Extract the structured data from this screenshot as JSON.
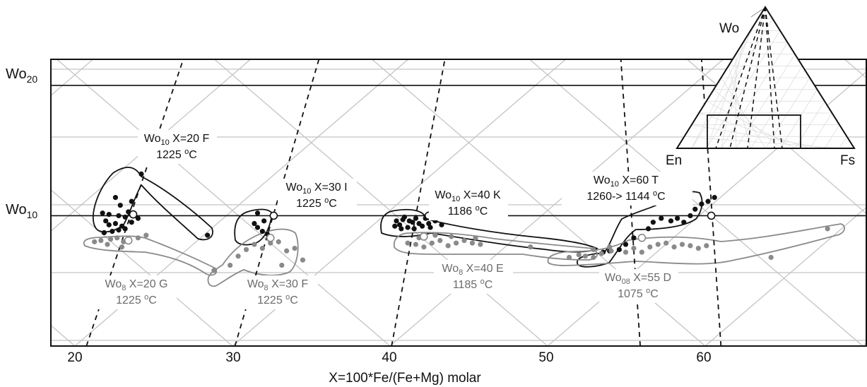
{
  "chart_data": {
    "type": "scatter",
    "title": "",
    "xlabel": "X=100*Fe/(Fe+Mg) molar",
    "ylabel": "",
    "xlim": [
      18.5,
      69
    ],
    "ylim": [
      0,
      22
    ],
    "x_ticks": [
      20,
      30,
      40,
      50,
      60
    ],
    "x_tick_labels": [
      "20",
      "30",
      "40",
      "50",
      "60"
    ],
    "y_ticks": [
      {
        "value": 20,
        "base": "Wo",
        "sub": "20"
      },
      {
        "value": 10,
        "base": "Wo",
        "sub": "10"
      }
    ],
    "grid": true,
    "colors": {
      "black_series": "#111111",
      "grey_series": "#8a8a8a",
      "grid": "#bdbdbd"
    },
    "series": [
      {
        "label": {
          "base": "Wo",
          "sub": "10",
          "rest": " X=20 F",
          "temp": "1225 ",
          "deg": "o",
          "unit": "C"
        },
        "color": "black",
        "points": [
          [
            21.9,
            9.6
          ],
          [
            22.1,
            9.3
          ],
          [
            22.5,
            9.4
          ],
          [
            22.9,
            9.2
          ],
          [
            22.7,
            10.0
          ],
          [
            23.1,
            9.9
          ],
          [
            23.3,
            10.3
          ],
          [
            22.8,
            10.8
          ],
          [
            23.5,
            11.1
          ],
          [
            24.1,
            13.2
          ],
          [
            22.5,
            11.4
          ],
          [
            21.8,
            8.7
          ],
          [
            22.3,
            8.8
          ],
          [
            22.7,
            8.9
          ],
          [
            23.1,
            9.0
          ],
          [
            23.5,
            9.5
          ],
          [
            23.9,
            9.8
          ],
          [
            22.1,
            10.1
          ],
          [
            21.7,
            10.2
          ],
          [
            28.2,
            8.5
          ]
        ],
        "open_points": [
          [
            23.6,
            10.1
          ]
        ]
      },
      {
        "label": {
          "base": "Wo",
          "sub": "10",
          "rest": " X=30 I",
          "temp": "1225 ",
          "deg": "o",
          "unit": "C"
        },
        "color": "black",
        "points": [
          [
            31.1,
            9.4
          ],
          [
            31.3,
            9.1
          ],
          [
            31.6,
            8.8
          ],
          [
            31.9,
            8.6
          ],
          [
            31.3,
            10.2
          ],
          [
            31.7,
            9.6
          ]
        ],
        "open_points": [
          [
            32.3,
            10.0
          ]
        ]
      },
      {
        "label": {
          "base": "Wo",
          "sub": "10",
          "rest": " X=40 K",
          "temp": "1186 ",
          "deg": "o",
          "unit": "C"
        },
        "color": "black",
        "points": [
          [
            39.9,
            9.6
          ],
          [
            40.1,
            9.3
          ],
          [
            40.3,
            9.7
          ],
          [
            40.6,
            9.1
          ],
          [
            40.9,
            9.5
          ],
          [
            41.1,
            9.8
          ],
          [
            41.5,
            9.2
          ],
          [
            41.9,
            9.4
          ],
          [
            42.3,
            9.6
          ],
          [
            40.4,
            9.9
          ],
          [
            39.8,
            9.2
          ],
          [
            40.7,
            9.6
          ],
          [
            41.3,
            9.4
          ],
          [
            42.0,
            9.1
          ],
          [
            42.7,
            9.3
          ],
          [
            40.2,
            9.0
          ],
          [
            41.0,
            9.0
          ],
          [
            41.7,
            9.8
          ]
        ],
        "open_points": [
          [
            41.9,
            10.0
          ]
        ]
      },
      {
        "label": {
          "base": "Wo",
          "sub": "10",
          "rest": " X=60 T",
          "temp": "1260-> 1144 ",
          "deg": "o",
          "unit": "C"
        },
        "color": "black",
        "points": [
          [
            52.7,
            7.2
          ],
          [
            53.1,
            7.3
          ],
          [
            53.7,
            7.4
          ],
          [
            54.1,
            7.8
          ],
          [
            54.6,
            8.3
          ],
          [
            55.1,
            8.4
          ],
          [
            55.8,
            9.5
          ],
          [
            56.3,
            9.8
          ],
          [
            56.9,
            9.6
          ],
          [
            57.3,
            9.8
          ],
          [
            57.7,
            9.5
          ],
          [
            58.1,
            10.0
          ],
          [
            58.4,
            10.5
          ],
          [
            58.8,
            10.9
          ],
          [
            59.2,
            11.1
          ],
          [
            59.6,
            11.4
          ],
          [
            55.5,
            9.0
          ]
        ],
        "open_points": [
          [
            59.4,
            10.0
          ]
        ]
      },
      {
        "label": {
          "base": "Wo",
          "sub": "8",
          "rest": " X=20 G",
          "temp": "1225 ",
          "deg": "o",
          "unit": "C"
        },
        "color": "grey",
        "points": [
          [
            21.2,
            8.0
          ],
          [
            21.6,
            8.1
          ],
          [
            22.2,
            8.2
          ],
          [
            22.6,
            8.3
          ],
          [
            23.0,
            8.0
          ],
          [
            23.4,
            8.1
          ],
          [
            23.9,
            8.3
          ],
          [
            24.4,
            8.5
          ],
          [
            22.0,
            7.8
          ],
          [
            22.9,
            7.6
          ]
        ],
        "open_points": [
          [
            23.3,
            8.1
          ]
        ]
      },
      {
        "label": {
          "base": "Wo",
          "sub": "8",
          "rest": " X=30 F",
          "temp": "1225 ",
          "deg": "o",
          "unit": "C"
        },
        "color": "grey",
        "points": [
          [
            29.6,
            6.2
          ],
          [
            30.1,
            6.9
          ],
          [
            30.6,
            7.4
          ],
          [
            31.1,
            7.8
          ],
          [
            31.6,
            7.5
          ],
          [
            32.1,
            7.9
          ],
          [
            32.6,
            8.0
          ],
          [
            33.1,
            7.3
          ],
          [
            33.6,
            7.5
          ],
          [
            34.1,
            6.6
          ],
          [
            32.8,
            6.2
          ],
          [
            28.6,
            5.8
          ]
        ],
        "open_points": [
          [
            32.1,
            8.3
          ]
        ]
      },
      {
        "label": {
          "base": "Wo",
          "sub": "8",
          "rest": " X=40 E",
          "temp": "1185 ",
          "deg": "o",
          "unit": "C"
        },
        "color": "grey",
        "points": [
          [
            40.6,
            7.9
          ],
          [
            41.1,
            7.8
          ],
          [
            41.6,
            7.6
          ],
          [
            42.1,
            7.9
          ],
          [
            42.6,
            8.1
          ],
          [
            43.1,
            7.7
          ],
          [
            43.6,
            7.9
          ],
          [
            44.1,
            8.1
          ],
          [
            44.6,
            7.9
          ],
          [
            45.1,
            7.8
          ],
          [
            41.3,
            8.3
          ],
          [
            42.3,
            8.5
          ],
          [
            43.3,
            8.4
          ],
          [
            44.8,
            8.3
          ],
          [
            48.2,
            7.6
          ],
          [
            52.1,
            7.4
          ],
          [
            53.1,
            7.6
          ],
          [
            50.6,
            6.8
          ],
          [
            51.2,
            7.0
          ]
        ],
        "open_points": [
          [
            41.6,
            8.4
          ]
        ]
      },
      {
        "label": {
          "base": "Wo",
          "sub": "08",
          "rest": " X=55 D",
          "temp": "1075 ",
          "deg": "o",
          "unit": "C"
        },
        "color": "grey",
        "points": [
          [
            51.6,
            6.9
          ],
          [
            52.1,
            6.8
          ],
          [
            52.6,
            7.1
          ],
          [
            53.2,
            7.3
          ],
          [
            54.1,
            7.2
          ],
          [
            54.6,
            7.5
          ],
          [
            55.1,
            7.2
          ],
          [
            55.6,
            7.6
          ],
          [
            56.1,
            7.8
          ],
          [
            56.6,
            7.9
          ],
          [
            57.1,
            7.6
          ],
          [
            57.6,
            7.8
          ],
          [
            58.1,
            7.7
          ],
          [
            58.6,
            7.5
          ],
          [
            59.1,
            7.7
          ],
          [
            63.1,
            6.8
          ],
          [
            66.6,
            9.0
          ]
        ],
        "open_points": [
          [
            55.1,
            8.3
          ]
        ]
      }
    ],
    "isotherms": [
      {
        "x_bottom": 20.7,
        "x_top": 26.7
      },
      {
        "x_bottom": 29.9,
        "x_top": 35.1
      },
      {
        "x_bottom": 39.6,
        "x_top": 42.9
      },
      {
        "x_bottom": 55.0,
        "x_top": 53.8
      },
      {
        "x_bottom": 60.0,
        "x_top": 58.8
      }
    ],
    "inset": {
      "type": "ternary",
      "apex_labels": [
        "Wo",
        "En",
        "Fs"
      ]
    }
  }
}
